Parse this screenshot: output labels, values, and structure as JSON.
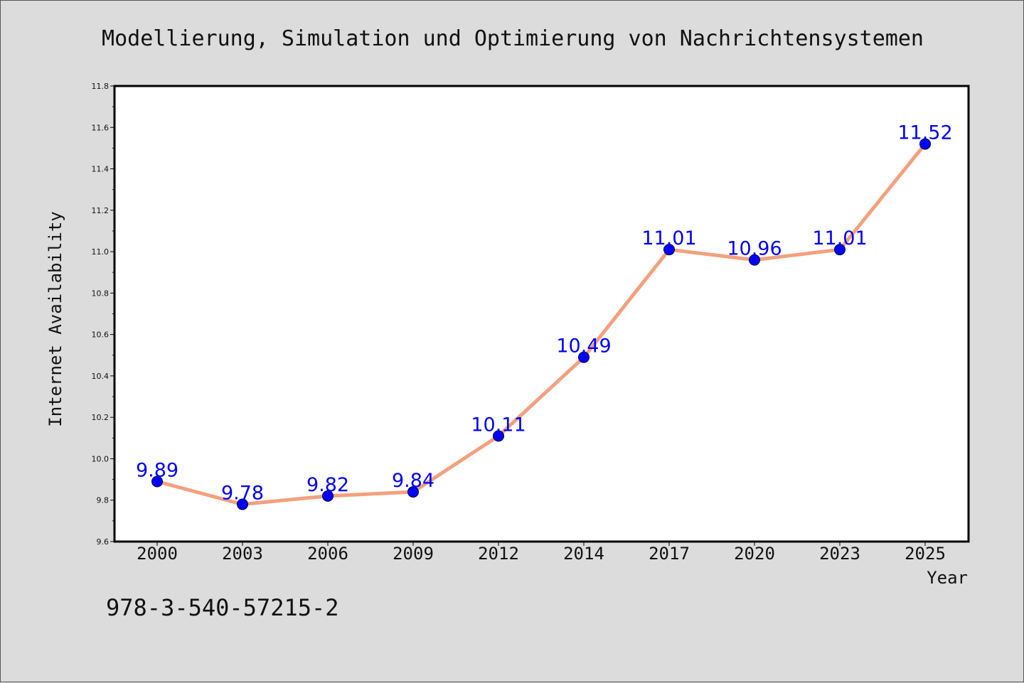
{
  "chart_data": {
    "type": "line",
    "title": "Modellierung, Simulation und Optimierung von Nachrichtensystemen",
    "xlabel": "Year",
    "ylabel": "Internet Availability",
    "categories": [
      "2000",
      "2003",
      "2006",
      "2009",
      "2012",
      "2014",
      "2017",
      "2020",
      "2023",
      "2025"
    ],
    "values": [
      9.89,
      9.78,
      9.82,
      9.84,
      10.11,
      10.49,
      11.01,
      10.96,
      11.01,
      11.52
    ],
    "data_labels": [
      "9.89",
      "9.78",
      "9.82",
      "9.84",
      "10.11",
      "10.49",
      "11.01",
      "10.96",
      "11.01",
      "11.52"
    ],
    "ylim": [
      9.6,
      11.8
    ],
    "yticks": [
      "9.6",
      "9.8",
      "10.0",
      "10.2",
      "10.4",
      "10.6",
      "10.8",
      "11.0",
      "11.2",
      "11.4",
      "11.6",
      "11.8"
    ],
    "grid": false,
    "line_color": "#f4a07e",
    "marker_color": "#0000ff"
  },
  "footnote": "978-3-540-57215-2"
}
